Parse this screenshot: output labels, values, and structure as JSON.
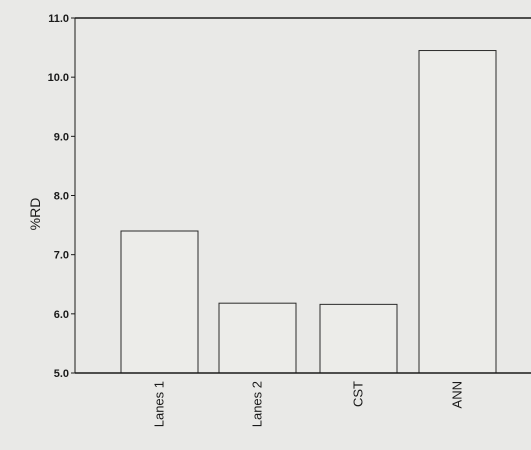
{
  "chart_data": {
    "type": "bar",
    "title": "",
    "xlabel": "",
    "ylabel": "%RD",
    "categories": [
      "Lanes 1",
      "Lanes 2",
      "CST",
      "ANN"
    ],
    "values": [
      7.4,
      6.18,
      6.16,
      10.45
    ],
    "ylim": [
      5.0,
      11.0
    ],
    "yticks": [
      5.0,
      6.0,
      7.0,
      8.0,
      9.0,
      10.0,
      11.0
    ],
    "ytick_labels": [
      "5.0",
      "6.0",
      "7.0",
      "8.0",
      "9.0",
      "10.0",
      "11.0"
    ],
    "grid": false,
    "legend": "none",
    "colors": {
      "bar_fill": "#ecece9",
      "bar_stroke": "#2a2a2a",
      "axis": "#1a1a1a",
      "background": "#e9e9e7"
    }
  }
}
